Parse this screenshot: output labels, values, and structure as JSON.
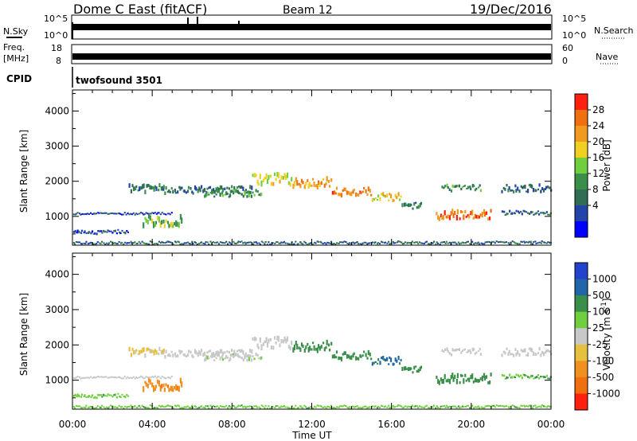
{
  "header": {
    "station": "Dome C East (fitACF)",
    "beam": "Beam 12",
    "date": "19/Dec/2016"
  },
  "strips": {
    "nsky_label": "N.Sky",
    "nsky_ticks": [
      "10^5",
      "10^0"
    ],
    "nsearch_label": "N.Search",
    "nsearch_ticks": [
      "10^5",
      "10^0"
    ],
    "freq_label_line1": "Freq.",
    "freq_label_line2": "[MHz]",
    "freq_ticks": [
      "18",
      "8"
    ],
    "nave_label": "Nave",
    "nave_ticks": [
      "60",
      "0"
    ],
    "cpid_label": "CPID",
    "cpid_value": "twofsound 3501"
  },
  "colors": {
    "power_scale": [
      "#0000ff",
      "#2244aa",
      "#2f6e55",
      "#3a8f4a",
      "#6fcf3f",
      "#f0d020",
      "#f09a20",
      "#f07010",
      "#ff2010"
    ],
    "velocity_scale": [
      "#2244cc",
      "#2266aa",
      "#3a8f4a",
      "#6fcf3f",
      "#c8c8c8",
      "#e8c040",
      "#f09020",
      "#f07010",
      "#ff2010"
    ]
  },
  "chart_data": [
    {
      "type": "heatmap",
      "panel": "power",
      "ylabel": "Slant Range [km]",
      "xlabel": "Time UT",
      "xlim_hours": [
        0,
        24
      ],
      "ylim": [
        180,
        4600
      ],
      "x_ticks": [
        "00:00",
        "04:00",
        "08:00",
        "12:00",
        "16:00",
        "20:00",
        "00:00"
      ],
      "y_ticks": [
        1000,
        2000,
        3000,
        4000
      ],
      "colorbar_label": "Power [dB]",
      "colorbar_ticks": [
        "28",
        "24",
        "20",
        "16",
        "12",
        "8",
        "4"
      ],
      "colorbar_range": [
        0,
        32
      ],
      "bands": [
        {
          "t0": 0.0,
          "t1": 24.0,
          "r": 250,
          "dr": 80,
          "level": 8
        },
        {
          "t0": 0.0,
          "t1": 5.0,
          "r": 1090,
          "dr": 60,
          "level": 6
        },
        {
          "t0": 0.0,
          "t1": 2.8,
          "r": 560,
          "dr": 120,
          "level": 6
        },
        {
          "t0": 3.5,
          "t1": 5.5,
          "r": 850,
          "dr": 300,
          "level": 16
        },
        {
          "t0": 2.8,
          "t1": 4.6,
          "r": 1800,
          "dr": 220,
          "level": 10
        },
        {
          "t0": 4.5,
          "t1": 9.0,
          "r": 1750,
          "dr": 200,
          "level": 9
        },
        {
          "t0": 6.5,
          "t1": 9.5,
          "r": 1650,
          "dr": 180,
          "level": 12
        },
        {
          "t0": 9.0,
          "t1": 11.0,
          "r": 2050,
          "dr": 300,
          "level": 18
        },
        {
          "t0": 11.0,
          "t1": 13.0,
          "r": 1950,
          "dr": 250,
          "level": 24
        },
        {
          "t0": 13.0,
          "t1": 15.0,
          "r": 1700,
          "dr": 220,
          "level": 26
        },
        {
          "t0": 15.0,
          "t1": 16.5,
          "r": 1550,
          "dr": 200,
          "level": 20
        },
        {
          "t0": 16.5,
          "t1": 17.5,
          "r": 1300,
          "dr": 200,
          "level": 10
        },
        {
          "t0": 18.2,
          "t1": 21.0,
          "r": 1050,
          "dr": 250,
          "level": 26
        },
        {
          "t0": 18.5,
          "t1": 20.5,
          "r": 1800,
          "dr": 160,
          "level": 12
        },
        {
          "t0": 21.5,
          "t1": 24.0,
          "r": 1800,
          "dr": 200,
          "level": 8
        },
        {
          "t0": 21.5,
          "t1": 24.0,
          "r": 1100,
          "dr": 120,
          "level": 8
        }
      ]
    },
    {
      "type": "heatmap",
      "panel": "velocity",
      "ylabel": "Slant Range [km]",
      "xlabel": "Time UT",
      "xlim_hours": [
        0,
        24
      ],
      "ylim": [
        180,
        4600
      ],
      "x_ticks": [
        "00:00",
        "04:00",
        "08:00",
        "12:00",
        "16:00",
        "20:00",
        "00:00"
      ],
      "y_ticks": [
        1000,
        2000,
        3000,
        4000
      ],
      "colorbar_label": "Velocity [m s^-1]",
      "colorbar_ticks": [
        "1000",
        "500",
        "100",
        "25",
        "-25",
        "-100",
        "-500",
        "-1000"
      ],
      "bands": [
        {
          "t0": 0.0,
          "t1": 24.0,
          "r": 250,
          "dr": 80,
          "v": 80
        },
        {
          "t0": 0.0,
          "t1": 5.0,
          "r": 1090,
          "dr": 60,
          "v": 0
        },
        {
          "t0": 0.0,
          "t1": 2.8,
          "r": 560,
          "dr": 120,
          "v": 80
        },
        {
          "t0": 3.5,
          "t1": 5.5,
          "r": 850,
          "dr": 300,
          "v": -400
        },
        {
          "t0": 2.8,
          "t1": 4.6,
          "r": 1800,
          "dr": 220,
          "v": -30
        },
        {
          "t0": 4.5,
          "t1": 9.0,
          "r": 1750,
          "dr": 200,
          "v": 0
        },
        {
          "t0": 6.5,
          "t1": 9.5,
          "r": 1650,
          "dr": 180,
          "v": 10
        },
        {
          "t0": 9.0,
          "t1": 11.0,
          "r": 2050,
          "dr": 300,
          "v": 0
        },
        {
          "t0": 11.0,
          "t1": 13.0,
          "r": 1950,
          "dr": 250,
          "v": 150
        },
        {
          "t0": 13.0,
          "t1": 15.0,
          "r": 1700,
          "dr": 220,
          "v": 300
        },
        {
          "t0": 15.0,
          "t1": 16.5,
          "r": 1550,
          "dr": 200,
          "v": 600
        },
        {
          "t0": 16.5,
          "t1": 17.5,
          "r": 1300,
          "dr": 200,
          "v": 150
        },
        {
          "t0": 18.2,
          "t1": 21.0,
          "r": 1050,
          "dr": 250,
          "v": 200
        },
        {
          "t0": 18.5,
          "t1": 20.5,
          "r": 1800,
          "dr": 160,
          "v": 0
        },
        {
          "t0": 21.5,
          "t1": 24.0,
          "r": 1800,
          "dr": 200,
          "v": 0
        },
        {
          "t0": 21.5,
          "t1": 24.0,
          "r": 1100,
          "dr": 120,
          "v": 100
        }
      ]
    }
  ]
}
